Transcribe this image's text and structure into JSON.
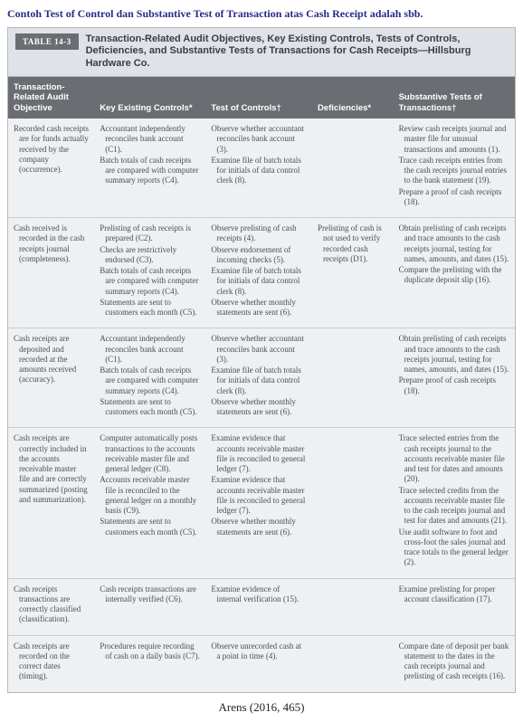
{
  "heading": "Contoh Test of Control dan Substantive Test of Transaction atas Cash Receipt adalah sbb.",
  "badge": "TABLE 14-3",
  "title": "Transaction-Related Audit Objectives, Key Existing Controls, Tests of Controls, Deficiencies, and Substantive Tests of Transactions for Cash Receipts—Hillsburg Hardware Co.",
  "columns": [
    {
      "w": "17%",
      "label": "Transaction-Related Audit Objective"
    },
    {
      "w": "22%",
      "label": "Key Existing Controls*"
    },
    {
      "w": "21%",
      "label": "Test of Controls†"
    },
    {
      "w": "16%",
      "label": "Deficiencies*"
    },
    {
      "w": "24%",
      "label": "Substantive Tests of Transactions†"
    }
  ],
  "rows": [
    {
      "objective": [
        "Recorded cash receipts are for funds actually received by the company (occurrence)."
      ],
      "controls": [
        "Accountant independently reconciles bank account (C1).",
        "Batch totals of cash receipts are compared with computer summary reports (C4)."
      ],
      "tests": [
        "Observe whether accountant reconciles bank account (3).",
        "Examine file of batch totals for initials of data control clerk (8)."
      ],
      "defs": [],
      "subst": [
        "Review cash receipts journal and master file for unusual transactions and amounts (1).",
        "Trace cash receipts entries from the cash receipts journal entries to the bank statement (19).",
        "Prepare a proof of cash receipts (18)."
      ]
    },
    {
      "objective": [
        "Cash received is recorded in the cash receipts journal (completeness)."
      ],
      "controls": [
        "Prelisting of cash receipts is prepared (C2).",
        "Checks are restrictively endorsed (C3).",
        "Batch totals of cash receipts are compared with computer summary reports (C4).",
        "Statements are sent to customers each month (C5)."
      ],
      "tests": [
        "Observe prelisting of cash receipts (4).",
        "Observe endorsement of incoming checks (5).",
        "Examine file of batch totals for initials of data control clerk (8).",
        "Observe whether monthly statements are sent (6)."
      ],
      "defs": [
        "Prelisting of cash is not used to verify recorded cash receipts (D1)."
      ],
      "subst": [
        "Obtain prelisting of cash receipts and trace amounts to the cash receipts journal, testing for names, amounts, and dates (15).",
        "Compare the prelisting with the duplicate deposit slip (16)."
      ]
    },
    {
      "objective": [
        "Cash receipts are deposited and recorded at the amounts received (accuracy)."
      ],
      "controls": [
        "Accountant independently reconciles bank account (C1).",
        "Batch totals of cash receipts are compared with computer summary reports (C4).",
        "Statements are sent to customers each month (C5)."
      ],
      "tests": [
        "Observe whether accountant reconciles bank account (3).",
        "Examine file of batch totals for initials of data control clerk (8).",
        "Observe whether monthly statements are sent (6)."
      ],
      "defs": [],
      "subst": [
        "Obtain prelisting of cash receipts and trace amounts to the cash receipts journal, testing for names, amounts, and dates (15).",
        "Prepare proof of cash receipts (18)."
      ]
    },
    {
      "objective": [
        "Cash receipts are correctly included in the accounts receivable master file and are correctly summarized (posting and summarization)."
      ],
      "controls": [
        "Computer automatically posts transactions to the accounts receivable master file and general ledger (C8).",
        "Accounts receivable master file is reconciled to the general ledger on a monthly basis (C9).",
        "Statements are sent to customers each month (C5)."
      ],
      "tests": [
        "Examine evidence that accounts receivable master file is reconciled to general ledger (7).",
        "Examine evidence that accounts receivable master file is reconciled to general ledger (7).",
        "Observe whether monthly statements are sent (6)."
      ],
      "defs": [],
      "subst": [
        "Trace selected entries from the cash receipts journal to the accounts receivable master file and test for dates and amounts (20).",
        "Trace selected credits from the accounts receivable master file to the cash receipts journal and test for dates and amounts (21).",
        "Use audit software to foot and cross-foot the sales journal and trace totals to the general ledger (2)."
      ]
    },
    {
      "objective": [
        "Cash receipts transactions are correctly classified (classification)."
      ],
      "controls": [
        "Cash receipts transactions are internally verified (C6)."
      ],
      "tests": [
        "Examine evidence of internal verification (15)."
      ],
      "defs": [],
      "subst": [
        "Examine prelisting for proper account classification (17)."
      ]
    },
    {
      "objective": [
        "Cash receipts are recorded on the correct dates (timing)."
      ],
      "controls": [
        "Procedures require recording of cash on a daily basis (C7)."
      ],
      "tests": [
        "Observe unrecorded cash at a point in time (4)."
      ],
      "defs": [],
      "subst": [
        "Compare date of deposit per bank statement to the dates in the cash receipts journal and prelisting of cash receipts (16)."
      ]
    }
  ],
  "citation": "Arens (2016, 465)"
}
